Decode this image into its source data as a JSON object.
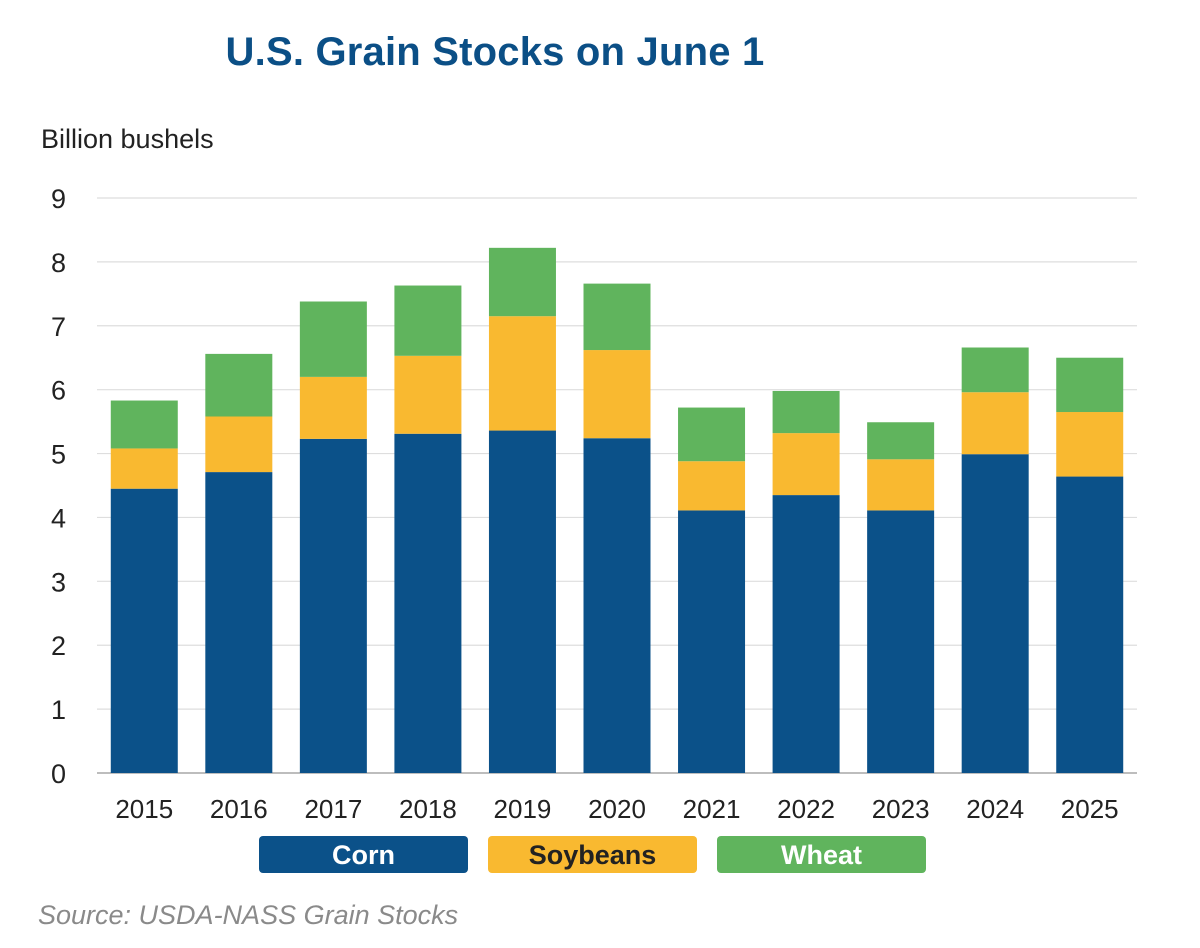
{
  "chart_data": {
    "type": "bar",
    "stacked": true,
    "title": "U.S. Grain Stocks on June 1",
    "ylabel": "Billion bushels",
    "xlabel": "",
    "ylim": [
      0,
      9
    ],
    "yticks": [
      0,
      1,
      2,
      3,
      4,
      5,
      6,
      7,
      8,
      9
    ],
    "grid": true,
    "legend_position": "bottom",
    "categories": [
      "2015",
      "2016",
      "2017",
      "2018",
      "2019",
      "2020",
      "2021",
      "2022",
      "2023",
      "2024",
      "2025"
    ],
    "series": [
      {
        "name": "Corn",
        "color": "#0b5189",
        "text_color": "#ffffff",
        "values": [
          4.45,
          4.71,
          5.23,
          5.31,
          5.36,
          5.24,
          4.11,
          4.35,
          4.11,
          4.99,
          4.64
        ]
      },
      {
        "name": "Soybeans",
        "color": "#f9b930",
        "text_color": "#222222",
        "values": [
          0.63,
          0.87,
          0.97,
          1.22,
          1.79,
          1.38,
          0.77,
          0.97,
          0.8,
          0.97,
          1.01
        ]
      },
      {
        "name": "Wheat",
        "color": "#60b45d",
        "text_color": "#ffffff",
        "values": [
          0.75,
          0.98,
          1.18,
          1.1,
          1.07,
          1.04,
          0.84,
          0.66,
          0.58,
          0.7,
          0.85
        ]
      }
    ]
  },
  "source": "Source: USDA-NASS Grain Stocks"
}
